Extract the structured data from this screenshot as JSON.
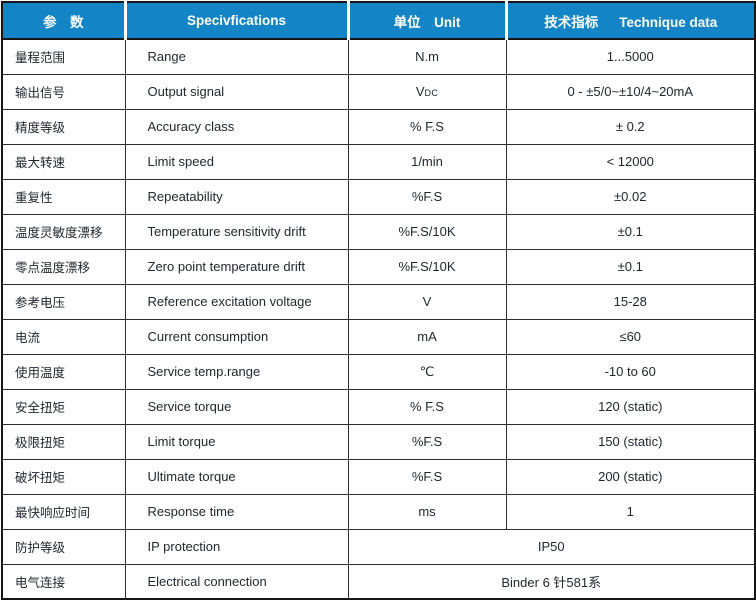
{
  "table": {
    "header": {
      "param": "参　数",
      "spec": "Specivfications",
      "unit": "单位　Unit",
      "tech": "技术指标　  Technique data"
    },
    "rows": [
      {
        "param": "量程范围",
        "spec": "Range",
        "unit": "N.m",
        "value": "1...5000"
      },
      {
        "param": "输出信号",
        "spec": "Output signal",
        "unit": "V",
        "unit_sub": "DC",
        "value": "0 - ±5/0~±10/4~20mA"
      },
      {
        "param": "精度等级",
        "spec": "Accuracy class",
        "unit": "% F.S",
        "value": "± 0.2"
      },
      {
        "param": "最大转速",
        "spec": "Limit speed",
        "unit": "1/min",
        "value": "< 12000"
      },
      {
        "param": "重复性",
        "spec": "Repeatability",
        "unit": "%F.S",
        "value": "±0.02"
      },
      {
        "param": "温度灵敏度漂移",
        "spec": "Temperature sensitivity drift",
        "unit": "%F.S/10K",
        "value": "±0.1"
      },
      {
        "param": "零点温度漂移",
        "spec": "Zero point temperature drift",
        "unit": "%F.S/10K",
        "value": "±0.1"
      },
      {
        "param": "参考电压",
        "spec": "Reference excitation voltage",
        "unit": "V",
        "value": "15-28"
      },
      {
        "param": "电流",
        "spec": "Current consumption",
        "unit": "mA",
        "value": "≤60"
      },
      {
        "param": "使用温度",
        "spec": "Service temp.range",
        "unit": "℃",
        "value": "-10 to 60"
      },
      {
        "param": "安全扭矩",
        "spec": "Service torque",
        "unit": "% F.S",
        "value": "120 (static)"
      },
      {
        "param": "极限扭矩",
        "spec": "Limit torque",
        "unit": "%F.S",
        "value": "150 (static)"
      },
      {
        "param": "破坏扭矩",
        "spec": "Ultimate torque",
        "unit": "%F.S",
        "value": "200 (static)"
      },
      {
        "param": "最快响应时间",
        "spec": "Response time",
        "unit": "ms",
        "value": "1"
      },
      {
        "param": "防护等级",
        "spec": "IP protection",
        "value_merged": "IP50"
      },
      {
        "param": "电气连接",
        "spec": "Electrical connection",
        "value_merged": "Binder 6 针581系"
      }
    ],
    "colors": {
      "header_bg": "#1384C5",
      "header_text": "#FFFFFF",
      "body_text": "#22262E",
      "outer_border": "#161616",
      "inner_border": "#2E2E2E"
    }
  }
}
